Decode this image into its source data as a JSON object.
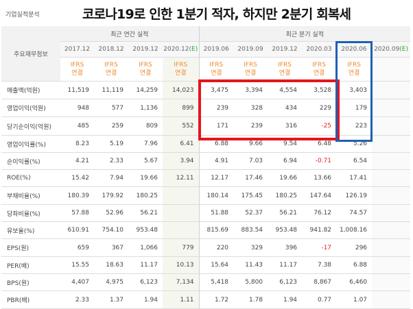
{
  "corner_label": "기업실적분석",
  "banner": "코로나19로 인한 1분기 적자, 하지만 2분기 회복세",
  "header": {
    "row_label": "주요재무정보",
    "group_annual": "최근 연간 실적",
    "group_quarter": "최근 분기 실적",
    "periods": [
      "2017.12",
      "2018.12",
      "2019.12",
      "2020.12(E)",
      "2019.06",
      "2019.09",
      "2019.12",
      "2020.03",
      "2020.06",
      "2020.09(E)"
    ],
    "ifrs_line1": "IFRS",
    "ifrs_line2": "연결"
  },
  "rows": [
    {
      "label": "매출액(억원)",
      "values": [
        "11,519",
        "11,119",
        "14,259",
        "14,023",
        "3,475",
        "3,394",
        "4,554",
        "3,528",
        "3,403",
        ""
      ]
    },
    {
      "label": "영업이익(억원)",
      "values": [
        "948",
        "577",
        "1,136",
        "899",
        "239",
        "328",
        "434",
        "229",
        "179",
        ""
      ]
    },
    {
      "label": "당기순이익(억원)",
      "values": [
        "485",
        "259",
        "809",
        "552",
        "171",
        "239",
        "316",
        "-25",
        "223",
        ""
      ]
    },
    {
      "label": "영업이익률(%)",
      "values": [
        "8.23",
        "5.19",
        "7.96",
        "6.41",
        "6.88",
        "9.66",
        "9.54",
        "6.48",
        "5.26",
        ""
      ]
    },
    {
      "label": "순이익률(%)",
      "values": [
        "4.21",
        "2.33",
        "5.67",
        "3.94",
        "4.91",
        "7.03",
        "6.94",
        "-0.71",
        "6.54",
        ""
      ]
    },
    {
      "label": "ROE(%)",
      "values": [
        "15.42",
        "7.94",
        "19.66",
        "12.11",
        "12.17",
        "17.46",
        "19.66",
        "13.66",
        "17.41",
        ""
      ]
    },
    {
      "label": "부채비율(%)",
      "values": [
        "180.39",
        "179.92",
        "180.25",
        "",
        "180.14",
        "175.45",
        "180.25",
        "147.64",
        "126.19",
        ""
      ]
    },
    {
      "label": "당좌비율(%)",
      "values": [
        "57.88",
        "52.96",
        "56.21",
        "",
        "51.88",
        "52.37",
        "56.21",
        "76.12",
        "74.57",
        ""
      ]
    },
    {
      "label": "유보율(%)",
      "values": [
        "610.91",
        "754.10",
        "953.48",
        "",
        "815.69",
        "883.54",
        "953.48",
        "941.82",
        "1,008.16",
        ""
      ]
    },
    {
      "label": "EPS(원)",
      "values": [
        "659",
        "367",
        "1,066",
        "779",
        "220",
        "329",
        "396",
        "-17",
        "296",
        ""
      ]
    },
    {
      "label": "PER(배)",
      "values": [
        "15.55",
        "18.63",
        "11.17",
        "10.13",
        "15.64",
        "11.43",
        "11.17",
        "7.38",
        "6.88",
        ""
      ]
    },
    {
      "label": "BPS(원)",
      "values": [
        "4,407",
        "4,975",
        "6,123",
        "7,134",
        "5,418",
        "5,800",
        "6,123",
        "8,867",
        "6,460",
        ""
      ]
    },
    {
      "label": "PBR(배)",
      "values": [
        "2.33",
        "1.37",
        "1.94",
        "1.11",
        "1.72",
        "1.78",
        "1.94",
        "0.77",
        "1.07",
        ""
      ]
    }
  ],
  "colors": {
    "red_box": "#e8141c",
    "blue_box": "#1f5fb4",
    "ifrs": "#f08a2c",
    "estimate": "#2e9e3a",
    "negative": "#e02020"
  }
}
